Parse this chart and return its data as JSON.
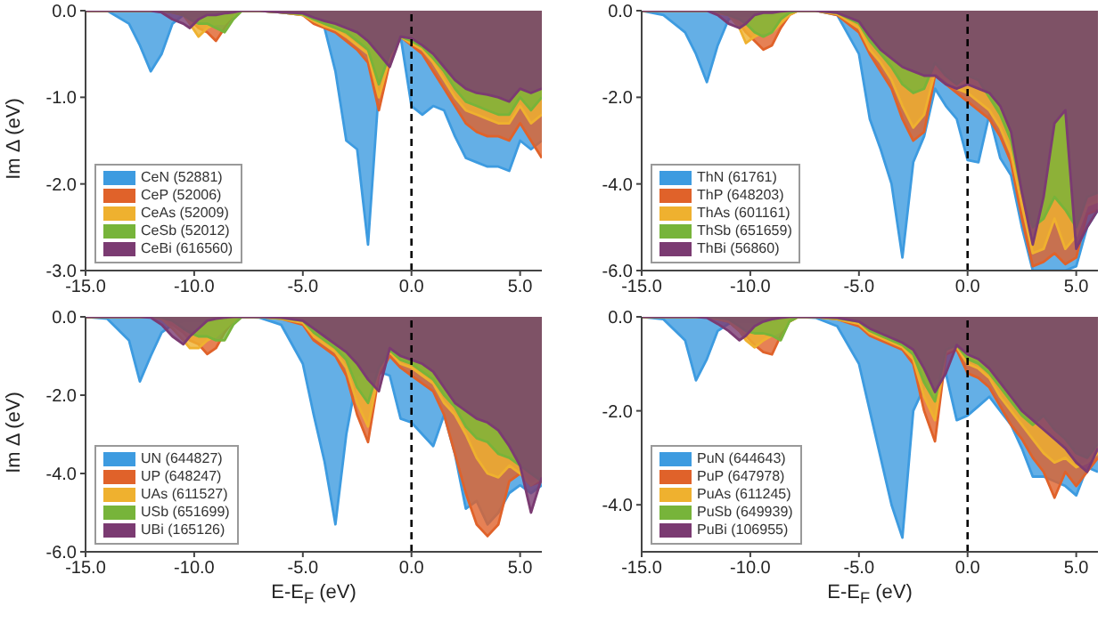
{
  "chart_data": [
    {
      "type": "area",
      "ylabel": "Im Δ (eV)",
      "legend": "bottom left",
      "xlim": [
        -15,
        6
      ],
      "xticks": [
        {
          "value": -15,
          "label": "-15.0"
        },
        {
          "value": -10,
          "label": "-10.0"
        },
        {
          "value": -5,
          "label": "-5.0"
        },
        {
          "value": 0,
          "label": "0.0"
        },
        {
          "value": 5,
          "label": "5.0"
        }
      ],
      "ylim": [
        -3,
        0
      ],
      "yticks": [
        {
          "value": -3,
          "label": "-3.0"
        },
        {
          "value": -2,
          "label": "-2.0"
        },
        {
          "value": -1,
          "label": "-1.0"
        },
        {
          "value": 0,
          "label": "0.0"
        }
      ],
      "ref_lines": [
        {
          "axis": "x",
          "value": 0,
          "color": "#000000",
          "line_style": "dashed"
        }
      ],
      "x": [
        -15,
        -14,
        -13,
        -12.5,
        -12,
        -11.5,
        -11,
        -10.5,
        -10.2,
        -9.8,
        -9.4,
        -9,
        -8.6,
        -8.2,
        -7.8,
        -7,
        -6,
        -5,
        -4.5,
        -4,
        -3.5,
        -3,
        -2.5,
        -2,
        -1.5,
        -1,
        -0.5,
        0,
        0.5,
        1,
        1.5,
        2,
        2.5,
        3,
        3.5,
        4,
        4.5,
        5,
        5.5,
        6
      ],
      "series": [
        {
          "name": "CeN (52881)",
          "color": "#3d9be0",
          "values": [
            0,
            0,
            -0.15,
            -0.4,
            -0.7,
            -0.5,
            -0.15,
            -0.05,
            -0.05,
            -0.05,
            -0.05,
            -0.05,
            -0.03,
            -0.02,
            0,
            0,
            -0.02,
            -0.05,
            -0.08,
            -0.2,
            -0.7,
            -1.5,
            -1.6,
            -2.7,
            -0.9,
            -0.5,
            -0.3,
            -1.1,
            -1.2,
            -1.1,
            -1.15,
            -1.45,
            -1.7,
            -1.75,
            -1.8,
            -1.8,
            -1.85,
            -1.5,
            -1.6,
            -1.5
          ]
        },
        {
          "name": "CeP (52006)",
          "color": "#e0622a",
          "values": [
            0,
            0,
            0,
            0,
            0,
            0,
            -0.02,
            -0.05,
            -0.1,
            -0.2,
            -0.25,
            -0.35,
            -0.2,
            -0.05,
            0,
            0,
            -0.02,
            -0.05,
            -0.15,
            -0.2,
            -0.25,
            -0.35,
            -0.45,
            -0.6,
            -1.15,
            -0.6,
            -0.3,
            -0.4,
            -0.5,
            -0.7,
            -0.9,
            -1.1,
            -1.3,
            -1.4,
            -1.45,
            -1.45,
            -1.5,
            -1.3,
            -1.5,
            -1.7
          ]
        },
        {
          "name": "CeAs (52009)",
          "color": "#efb12f",
          "values": [
            0,
            0,
            0,
            0,
            0,
            0,
            -0.02,
            -0.05,
            -0.15,
            -0.3,
            -0.2,
            -0.15,
            -0.15,
            -0.05,
            0,
            0,
            -0.02,
            -0.05,
            -0.12,
            -0.18,
            -0.22,
            -0.3,
            -0.4,
            -0.5,
            -1.0,
            -0.55,
            -0.3,
            -0.38,
            -0.45,
            -0.6,
            -0.8,
            -1.0,
            -1.15,
            -1.2,
            -1.25,
            -1.3,
            -1.3,
            -1.1,
            -1.3,
            -1.2
          ]
        },
        {
          "name": "CeSb (52012)",
          "color": "#77b43a",
          "values": [
            0,
            0,
            0,
            0,
            0,
            0,
            -0.02,
            -0.05,
            -0.1,
            -0.15,
            -0.15,
            -0.2,
            -0.25,
            -0.1,
            0,
            0,
            -0.02,
            -0.04,
            -0.1,
            -0.15,
            -0.2,
            -0.25,
            -0.35,
            -0.45,
            -0.85,
            -0.5,
            -0.3,
            -0.35,
            -0.42,
            -0.55,
            -0.7,
            -0.9,
            -1.05,
            -1.1,
            -1.15,
            -1.2,
            -1.2,
            -1.0,
            -1.15,
            -1.0
          ]
        },
        {
          "name": "CeBi (616560)",
          "color": "#7b3b72",
          "values": [
            0,
            0,
            0,
            0,
            0,
            -0.02,
            -0.1,
            -0.15,
            -0.2,
            -0.1,
            -0.05,
            -0.05,
            -0.03,
            -0.02,
            0,
            0,
            -0.02,
            -0.03,
            -0.08,
            -0.12,
            -0.15,
            -0.2,
            -0.25,
            -0.35,
            -0.5,
            -0.65,
            -0.3,
            -0.32,
            -0.4,
            -0.5,
            -0.65,
            -0.8,
            -0.9,
            -0.95,
            -0.97,
            -1.0,
            -1.05,
            -0.9,
            -0.95,
            -0.9
          ]
        }
      ]
    },
    {
      "type": "area",
      "legend": "bottom left",
      "xlim": [
        -15,
        6
      ],
      "xticks": [
        {
          "value": -15,
          "label": "-15.0"
        },
        {
          "value": -10,
          "label": "-10.0"
        },
        {
          "value": -5,
          "label": "-5.0"
        },
        {
          "value": 0,
          "label": "0.0"
        },
        {
          "value": 5,
          "label": "5.0"
        }
      ],
      "ylim": [
        -6,
        0
      ],
      "yticks": [
        {
          "value": -6,
          "label": "-6.0"
        },
        {
          "value": -4,
          "label": "-4.0"
        },
        {
          "value": -2,
          "label": "-2.0"
        },
        {
          "value": 0,
          "label": "0.0"
        }
      ],
      "ref_lines": [
        {
          "axis": "x",
          "value": 0,
          "color": "#000000",
          "line_style": "dashed"
        }
      ],
      "x": [
        -15,
        -14,
        -13,
        -12.5,
        -12,
        -11.5,
        -11,
        -10.5,
        -10.2,
        -9.8,
        -9.4,
        -9,
        -8.6,
        -8.2,
        -7.8,
        -7,
        -6,
        -5,
        -4.5,
        -4,
        -3.5,
        -3,
        -2.5,
        -2,
        -1.5,
        -1,
        -0.5,
        0,
        0.5,
        1,
        1.5,
        2,
        2.5,
        3,
        3.5,
        4,
        4.5,
        5,
        5.5,
        6
      ],
      "series": [
        {
          "name": "ThN (61761)",
          "color": "#3d9be0",
          "values": [
            0,
            -0.1,
            -0.5,
            -1.0,
            -1.65,
            -0.8,
            -0.2,
            -0.1,
            -0.1,
            -0.1,
            -0.1,
            -0.1,
            -0.05,
            -0.02,
            0,
            0,
            -0.1,
            -1.0,
            -2.5,
            -3.2,
            -4.0,
            -5.7,
            -3.5,
            -2.9,
            -1.8,
            -2.2,
            -2.5,
            -3.45,
            -3.5,
            -2.4,
            -3.4,
            -3.8,
            -5.0,
            -6.0,
            -6.0,
            -6.0,
            -6.0,
            -5.9,
            -5.0,
            -4.6
          ]
        },
        {
          "name": "ThP (648203)",
          "color": "#e0622a",
          "values": [
            0,
            0,
            0,
            0,
            0,
            -0.05,
            -0.1,
            -0.3,
            -0.5,
            -0.7,
            -0.9,
            -0.8,
            -0.4,
            -0.1,
            0,
            0,
            -0.1,
            -0.5,
            -1.0,
            -1.4,
            -1.8,
            -2.5,
            -3.0,
            -2.8,
            -1.5,
            -1.7,
            -1.9,
            -2.1,
            -2.3,
            -2.5,
            -2.9,
            -3.5,
            -4.8,
            -5.9,
            -5.8,
            -5.6,
            -5.85,
            -5.7,
            -4.7,
            -4.6
          ]
        },
        {
          "name": "ThAs (601161)",
          "color": "#efb12f",
          "values": [
            0,
            0,
            0,
            0,
            0,
            -0.05,
            -0.1,
            -0.4,
            -0.75,
            -0.6,
            -0.5,
            -0.5,
            -0.3,
            -0.1,
            0,
            0,
            -0.08,
            -0.4,
            -0.9,
            -1.2,
            -1.6,
            -2.2,
            -2.7,
            -2.4,
            -1.4,
            -1.6,
            -1.8,
            -1.9,
            -2.1,
            -2.3,
            -2.7,
            -3.3,
            -4.5,
            -5.6,
            -5.5,
            -4.8,
            -5.5,
            -5.2,
            -4.5,
            -4.4
          ]
        },
        {
          "name": "ThSb (651659)",
          "color": "#77b43a",
          "values": [
            0,
            0,
            0,
            0,
            0,
            -0.02,
            -0.1,
            -0.2,
            -0.3,
            -0.5,
            -0.6,
            -0.5,
            -0.2,
            -0.05,
            0,
            0,
            -0.05,
            -0.3,
            -0.7,
            -1.0,
            -1.3,
            -1.7,
            -1.9,
            -1.8,
            -1.2,
            -1.5,
            -1.7,
            -1.5,
            -1.6,
            -2.0,
            -2.4,
            -3.0,
            -4.2,
            -5.0,
            -4.8,
            -4.3,
            -4.6,
            -5.0,
            -4.3,
            -4.2
          ]
        },
        {
          "name": "ThBi (56860)",
          "color": "#7b3b72",
          "values": [
            0,
            0,
            0,
            0,
            0,
            -0.1,
            -0.3,
            -0.4,
            -0.3,
            -0.1,
            -0.05,
            -0.05,
            -0.02,
            0,
            0,
            0,
            -0.05,
            -0.25,
            -0.6,
            -0.9,
            -1.1,
            -1.3,
            -1.4,
            -1.5,
            -1.5,
            -1.7,
            -1.8,
            -1.7,
            -1.8,
            -1.9,
            -2.2,
            -2.8,
            -4.2,
            -5.4,
            -4.3,
            -2.6,
            -2.3,
            -5.5,
            -5.0,
            -4.6
          ]
        }
      ]
    },
    {
      "type": "area",
      "ylabel": "Im Δ (eV)",
      "xlabel": "E-E$_{F}$ (eV)",
      "legend": "bottom left",
      "xlim": [
        -15,
        6
      ],
      "xticks": [
        {
          "value": -15,
          "label": "-15.0"
        },
        {
          "value": -10,
          "label": "-10.0"
        },
        {
          "value": -5,
          "label": "-5.0"
        },
        {
          "value": 0,
          "label": "0.0"
        },
        {
          "value": 5,
          "label": "5.0"
        }
      ],
      "ylim": [
        -6,
        0
      ],
      "yticks": [
        {
          "value": -6,
          "label": "-6.0"
        },
        {
          "value": -4,
          "label": "-4.0"
        },
        {
          "value": -2,
          "label": "-2.0"
        },
        {
          "value": 0,
          "label": "0.0"
        }
      ],
      "ref_lines": [
        {
          "axis": "x",
          "value": 0,
          "color": "#000000",
          "line_style": "dashed"
        }
      ],
      "x": [
        -15,
        -14,
        -13,
        -12.5,
        -12,
        -11.5,
        -11,
        -10.5,
        -10.2,
        -9.8,
        -9.4,
        -9,
        -8.6,
        -8.2,
        -7.8,
        -7,
        -6,
        -5,
        -4.5,
        -4,
        -3.5,
        -3,
        -2.5,
        -2,
        -1.5,
        -1,
        -0.5,
        0,
        0.5,
        1,
        1.5,
        2,
        2.5,
        3,
        3.5,
        4,
        4.5,
        5,
        5.5,
        6
      ],
      "series": [
        {
          "name": "UN (644827)",
          "color": "#3d9be0",
          "values": [
            0,
            -0.05,
            -0.6,
            -1.65,
            -1.0,
            -0.4,
            -0.2,
            -0.1,
            -0.1,
            -0.1,
            -0.1,
            -0.1,
            -0.05,
            -0.02,
            0,
            -0.02,
            -0.2,
            -1.2,
            -2.5,
            -3.7,
            -5.3,
            -3.0,
            -1.5,
            -1.4,
            -1.4,
            -1.5,
            -2.6,
            -2.7,
            -3.0,
            -3.3,
            -2.5,
            -3.5,
            -4.9,
            -4.7,
            -5.3,
            -5.0,
            -4.5,
            -4.3,
            -4.5,
            -4.3
          ]
        },
        {
          "name": "UP (648247)",
          "color": "#e0622a",
          "values": [
            0,
            0,
            0,
            0,
            0,
            -0.05,
            -0.2,
            -0.4,
            -0.6,
            -0.7,
            -0.95,
            -0.8,
            -0.4,
            -0.1,
            0,
            0,
            -0.05,
            -0.2,
            -0.6,
            -0.8,
            -1.0,
            -1.5,
            -2.5,
            -3.2,
            -1.5,
            -1.0,
            -1.3,
            -1.5,
            -1.7,
            -1.9,
            -2.5,
            -3.5,
            -4.5,
            -5.3,
            -5.6,
            -5.3,
            -4.2,
            -4.0,
            -4.3,
            -4.2
          ]
        },
        {
          "name": "UAs (611527)",
          "color": "#efb12f",
          "values": [
            0,
            0,
            0,
            0,
            0,
            -0.05,
            -0.3,
            -0.6,
            -0.8,
            -0.8,
            -0.6,
            -0.5,
            -0.3,
            -0.1,
            0,
            0,
            -0.05,
            -0.15,
            -0.5,
            -0.7,
            -0.9,
            -1.3,
            -2.2,
            -2.8,
            -1.4,
            -0.9,
            -1.2,
            -1.3,
            -1.5,
            -1.7,
            -2.2,
            -2.5,
            -3.0,
            -3.6,
            -4.0,
            -4.1,
            -3.8,
            -4.0,
            -4.3,
            -4.1
          ]
        },
        {
          "name": "USb (651699)",
          "color": "#77b43a",
          "values": [
            0,
            0,
            0,
            0,
            0,
            -0.02,
            -0.1,
            -0.3,
            -0.4,
            -0.5,
            -0.5,
            -0.6,
            -0.6,
            -0.2,
            0,
            0,
            -0.03,
            -0.1,
            -0.4,
            -0.6,
            -0.8,
            -1.1,
            -1.8,
            -2.2,
            -1.3,
            -0.85,
            -1.1,
            -1.2,
            -1.4,
            -1.6,
            -2.0,
            -2.3,
            -2.8,
            -3.1,
            -3.2,
            -3.5,
            -3.6,
            -3.8,
            -4.0,
            -4.2
          ]
        },
        {
          "name": "UBi (165126)",
          "color": "#7b3b72",
          "values": [
            0,
            0,
            0,
            0,
            -0.02,
            -0.2,
            -0.5,
            -0.7,
            -0.5,
            -0.3,
            -0.1,
            -0.05,
            -0.02,
            0,
            0,
            0,
            -0.02,
            -0.1,
            -0.3,
            -0.5,
            -0.7,
            -0.9,
            -1.2,
            -1.6,
            -1.9,
            -0.8,
            -1.0,
            -1.1,
            -1.2,
            -1.4,
            -1.8,
            -2.2,
            -2.4,
            -2.6,
            -2.7,
            -2.9,
            -3.3,
            -3.8,
            -5.0,
            -4.1
          ]
        }
      ]
    },
    {
      "type": "area",
      "xlabel": "E-E$_{F}$ (eV)",
      "legend": "bottom left",
      "xlim": [
        -15,
        6
      ],
      "xticks": [
        {
          "value": -15,
          "label": "-15.0"
        },
        {
          "value": -10,
          "label": "-10.0"
        },
        {
          "value": -5,
          "label": "-5.0"
        },
        {
          "value": 0,
          "label": "0.0"
        },
        {
          "value": 5,
          "label": "5.0"
        }
      ],
      "ylim": [
        -5,
        0
      ],
      "yticks": [
        {
          "value": -4,
          "label": "-4.0"
        },
        {
          "value": -2,
          "label": "-2.0"
        },
        {
          "value": 0,
          "label": "0.0"
        }
      ],
      "ref_lines": [
        {
          "axis": "x",
          "value": 0,
          "color": "#000000",
          "line_style": "dashed"
        }
      ],
      "x": [
        -15,
        -14,
        -13,
        -12.5,
        -12,
        -11.5,
        -11,
        -10.5,
        -10.2,
        -9.8,
        -9.4,
        -9,
        -8.6,
        -8.2,
        -7.8,
        -7,
        -6,
        -5,
        -4.5,
        -4,
        -3.5,
        -3,
        -2.5,
        -2,
        -1.5,
        -1,
        -0.5,
        0,
        0.5,
        1,
        1.5,
        2,
        2.5,
        3,
        3.5,
        4,
        4.5,
        5,
        5.5,
        6
      ],
      "series": [
        {
          "name": "PuN (644643)",
          "color": "#3d9be0",
          "values": [
            0,
            -0.05,
            -0.5,
            -1.35,
            -0.9,
            -0.3,
            -0.15,
            -0.1,
            -0.1,
            -0.1,
            -0.1,
            -0.1,
            -0.05,
            -0.02,
            0,
            -0.02,
            -0.2,
            -1.0,
            -2.0,
            -3.0,
            -4.0,
            -4.7,
            -2.0,
            -1.5,
            -1.3,
            -1.2,
            -2.2,
            -2.1,
            -1.9,
            -1.7,
            -2.0,
            -2.3,
            -2.8,
            -3.4,
            -3.4,
            -3.5,
            -3.6,
            -3.8,
            -3.2,
            -3.3
          ]
        },
        {
          "name": "PuP (647978)",
          "color": "#e0622a",
          "values": [
            0,
            0,
            0,
            0,
            0,
            -0.05,
            -0.1,
            -0.3,
            -0.4,
            -0.6,
            -0.75,
            -0.8,
            -0.4,
            -0.1,
            0,
            0,
            -0.05,
            -0.2,
            -0.4,
            -0.5,
            -0.6,
            -0.7,
            -1.0,
            -2.0,
            -2.65,
            -0.8,
            -0.7,
            -1.2,
            -1.3,
            -1.5,
            -1.9,
            -2.3,
            -2.6,
            -3.0,
            -3.3,
            -3.85,
            -3.3,
            -3.6,
            -3.3,
            -3.0
          ]
        },
        {
          "name": "PuAs (611245)",
          "color": "#efb12f",
          "values": [
            0,
            0,
            0,
            0,
            0,
            -0.05,
            -0.1,
            -0.3,
            -0.5,
            -0.65,
            -0.5,
            -0.4,
            -0.3,
            -0.1,
            0,
            0,
            -0.05,
            -0.15,
            -0.35,
            -0.45,
            -0.55,
            -0.65,
            -0.9,
            -1.7,
            -2.2,
            -0.75,
            -0.65,
            -1.0,
            -1.1,
            -1.3,
            -1.7,
            -2.0,
            -2.3,
            -2.6,
            -2.9,
            -3.1,
            -3.0,
            -3.2,
            -3.1,
            -2.9
          ]
        },
        {
          "name": "PuSb (649939)",
          "color": "#77b43a",
          "values": [
            0,
            0,
            0,
            0,
            0,
            -0.02,
            -0.05,
            -0.2,
            -0.3,
            -0.35,
            -0.35,
            -0.4,
            -0.5,
            -0.1,
            0,
            0,
            -0.03,
            -0.1,
            -0.3,
            -0.4,
            -0.5,
            -0.6,
            -0.8,
            -1.4,
            -1.8,
            -0.7,
            -0.6,
            -0.9,
            -1.0,
            -1.2,
            -1.5,
            -1.8,
            -2.1,
            -2.3,
            -2.1,
            -2.4,
            -2.6,
            -2.9,
            -3.0,
            -2.7
          ]
        },
        {
          "name": "PuBi (106955)",
          "color": "#7b3b72",
          "values": [
            0,
            0,
            0,
            0,
            -0.02,
            -0.15,
            -0.3,
            -0.5,
            -0.4,
            -0.2,
            -0.1,
            -0.05,
            -0.02,
            0,
            0,
            0,
            -0.02,
            -0.1,
            -0.25,
            -0.35,
            -0.45,
            -0.55,
            -0.7,
            -1.1,
            -1.6,
            -1.2,
            -0.6,
            -0.8,
            -0.9,
            -1.1,
            -1.4,
            -1.7,
            -2.0,
            -2.2,
            -2.4,
            -2.6,
            -2.8,
            -3.1,
            -3.3,
            -2.8
          ]
        }
      ]
    }
  ]
}
